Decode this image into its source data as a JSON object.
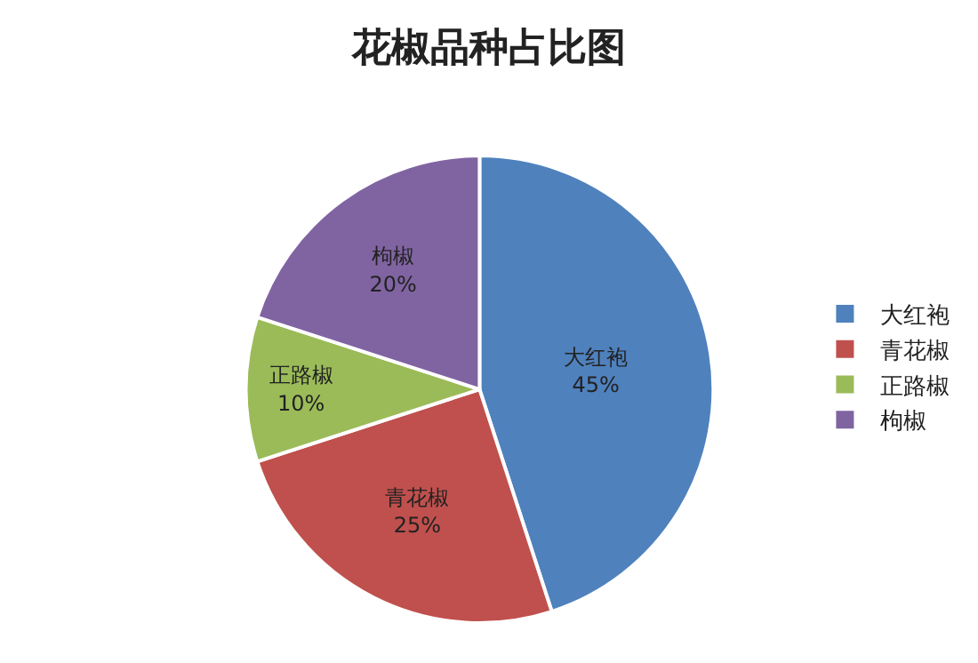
{
  "chart_data": {
    "type": "pie",
    "title": "花椒品种占比图",
    "categories": [
      "大红袍",
      "青花椒",
      "正路椒",
      "枸椒"
    ],
    "values": [
      45,
      25,
      10,
      20
    ],
    "value_labels": [
      "45%",
      "25%",
      "10%",
      "20%"
    ],
    "colors": [
      "#4f81bd",
      "#c0504d",
      "#9bbb59",
      "#8064a2"
    ],
    "legend": "right"
  }
}
